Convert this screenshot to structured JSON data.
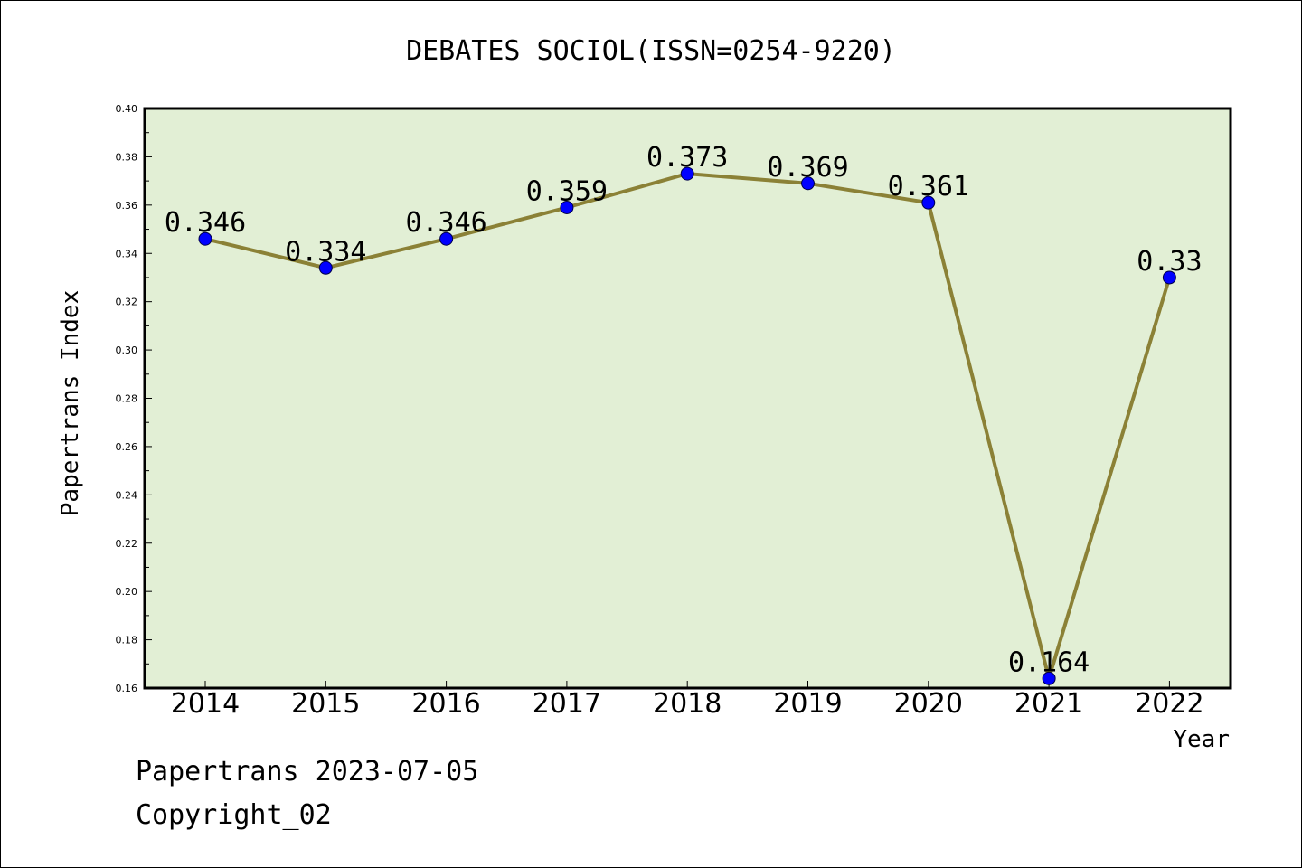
{
  "chart_data": {
    "type": "line",
    "title": "DEBATES SOCIOL(ISSN=0254-9220)",
    "xlabel": "Year",
    "ylabel": "Papertrans Index",
    "categories": [
      "2014",
      "2015",
      "2016",
      "2017",
      "2018",
      "2019",
      "2020",
      "2021",
      "2022"
    ],
    "values": [
      0.346,
      0.334,
      0.346,
      0.359,
      0.373,
      0.369,
      0.361,
      0.164,
      0.33
    ],
    "data_labels": [
      "0.346",
      "0.334",
      "0.346",
      "0.359",
      "0.373",
      "0.369",
      "0.361",
      "0.164",
      "0.33"
    ],
    "ylim": [
      0.16,
      0.4
    ],
    "y_ticks": [
      "0.16",
      "0.18",
      "0.20",
      "0.22",
      "0.24",
      "0.26",
      "0.28",
      "0.30",
      "0.32",
      "0.34",
      "0.36",
      "0.38",
      "0.40"
    ],
    "grid": false,
    "colors": {
      "plot_background": "#e2efd5",
      "line": "#8b8136",
      "marker": "#0000ff"
    }
  },
  "footer": {
    "date": "Papertrans 2023-07-05",
    "copyright": "Copyright_02"
  }
}
